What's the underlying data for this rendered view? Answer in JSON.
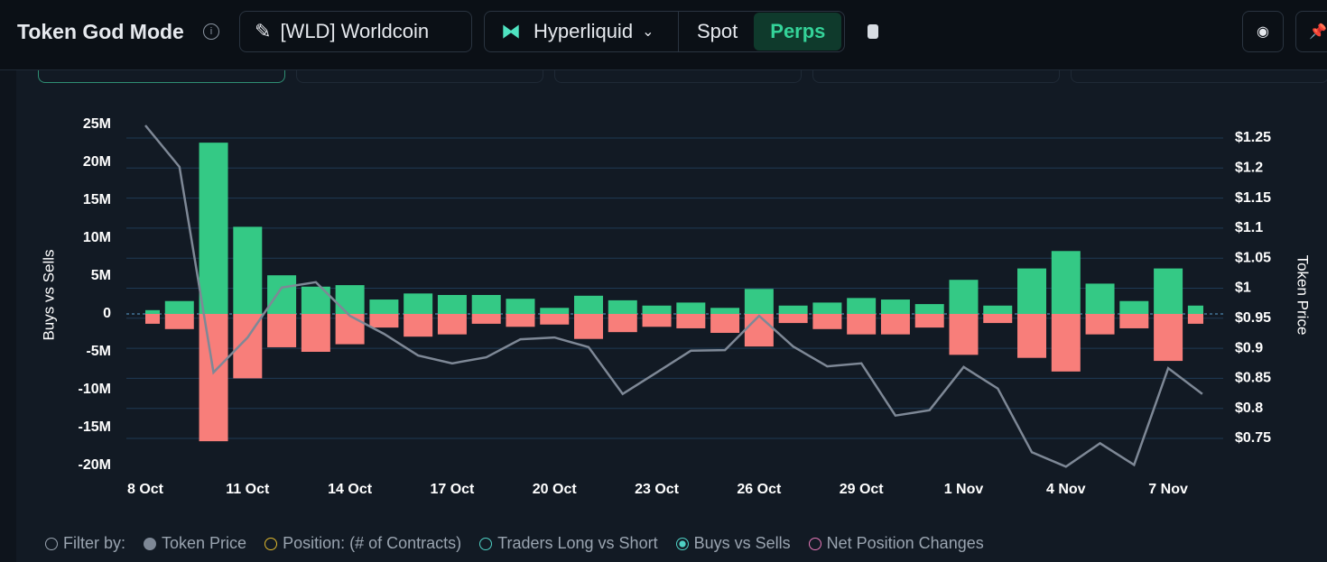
{
  "header": {
    "title": "Token God Mode",
    "token": "[WLD] Worldcoin",
    "exchange": "Hyperliquid",
    "tabs": [
      "Spot",
      "Perps"
    ]
  },
  "filters": {
    "label": "Filter by:",
    "items": [
      "Token Price",
      "Position: (# of Contracts)",
      "Traders Long vs Short",
      "Buys vs Sells",
      "Net Position Changes"
    ]
  },
  "chart_data": {
    "type": "bar",
    "y_label": "Buys vs Sells",
    "y2_label": "Token Price",
    "categories": [
      "8 Oct",
      null,
      null,
      "11 Oct",
      null,
      null,
      "14 Oct",
      null,
      null,
      "17 Oct",
      null,
      null,
      "20 Oct",
      null,
      null,
      "23 Oct",
      null,
      null,
      "26 Oct",
      null,
      null,
      "29 Oct",
      null,
      null,
      "1 Nov",
      null,
      null,
      "4 Nov",
      null,
      null,
      "7 Nov",
      null
    ],
    "series": [
      {
        "color": "#34c985",
        "values": [
          0.5,
          1.7,
          22.6,
          11.5,
          5.1,
          3.6,
          3.8,
          1.9,
          2.7,
          2.5,
          2.5,
          2.0,
          0.8,
          2.4,
          1.8,
          1.1,
          1.5,
          0.8,
          3.3,
          1.1,
          1.5,
          2.1,
          1.9,
          1.3,
          4.5,
          1.1,
          6.0,
          8.3,
          4.0,
          1.7,
          6.0,
          1.1
        ]
      },
      {
        "color": "#f87e7a",
        "values": [
          -1.3,
          -2.0,
          -16.8,
          -8.5,
          -4.4,
          -5.0,
          -4.0,
          -1.8,
          -3.0,
          -2.7,
          -1.3,
          -1.7,
          -1.4,
          -3.3,
          -2.4,
          -1.7,
          -1.9,
          -2.5,
          -4.3,
          -1.2,
          -2.0,
          -2.7,
          -2.7,
          -1.8,
          -5.4,
          -1.2,
          -5.8,
          -7.6,
          -2.7,
          -1.9,
          -6.2,
          -1.3
        ]
      },
      {
        "name": "Token Price",
        "type": "line",
        "axis": "y2",
        "color": "#7e8896",
        "values": [
          1.271,
          1.202,
          0.86,
          0.918,
          1.001,
          1.01,
          0.954,
          0.924,
          0.888,
          0.875,
          0.885,
          0.915,
          0.918,
          0.902,
          0.824,
          0.86,
          0.896,
          0.897,
          0.954,
          0.903,
          0.87,
          0.875,
          0.788,
          0.797,
          0.869,
          0.833,
          0.727,
          0.703,
          0.742,
          0.706,
          0.867,
          0.824
        ]
      }
    ],
    "ylim": [
      -20,
      25
    ],
    "yticks": [
      {
        "value": -20,
        "label": "-20M"
      },
      {
        "value": -15,
        "label": "-15M"
      },
      {
        "value": -10,
        "label": "-10M"
      },
      {
        "value": -5,
        "label": "-5M"
      },
      0,
      {
        "value": 5,
        "label": "5M"
      },
      {
        "value": 10,
        "label": "10M"
      },
      {
        "value": 15,
        "label": "15M"
      },
      {
        "value": 20,
        "label": "20M"
      },
      {
        "value": 25,
        "label": "25M"
      }
    ],
    "y2lim": [
      0.705,
      1.2725
    ],
    "y2ticks": [
      {
        "value": 0.75,
        "label": "$0.75"
      },
      {
        "value": 0.8,
        "label": "$0.8"
      },
      {
        "value": 0.85,
        "label": "$0.85"
      },
      {
        "value": 0.9,
        "label": "$0.9"
      },
      {
        "value": 0.95,
        "label": "$0.95"
      },
      {
        "value": 1,
        "label": "$1"
      },
      {
        "value": 1.05,
        "label": "$1.05"
      },
      {
        "value": 1.1,
        "label": "$1.1"
      },
      {
        "value": 1.15,
        "label": "$1.15"
      },
      {
        "value": 1.2,
        "label": "$1.2"
      },
      {
        "value": 1.25,
        "label": "$1.25"
      }
    ],
    "grid": true
  }
}
